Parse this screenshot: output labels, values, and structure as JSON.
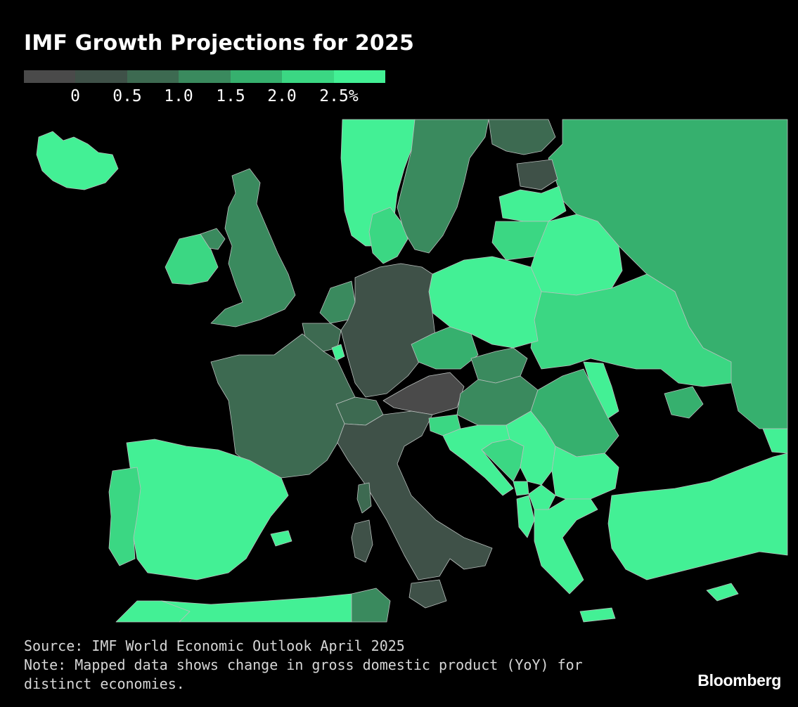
{
  "title": "IMF Growth Projections for 2025",
  "legend": {
    "colors": [
      "#4a4a4a",
      "#3f5148",
      "#3d6a51",
      "#3a8a5e",
      "#36b06e",
      "#3bd783",
      "#43f095"
    ],
    "ticks": [
      "0",
      "0.5",
      "1.0",
      "1.5",
      "2.0",
      "2.5%"
    ]
  },
  "map": {
    "regions": [
      {
        "name": "Iceland",
        "bin": 6
      },
      {
        "name": "Norway",
        "bin": 6
      },
      {
        "name": "Sweden",
        "bin": 3
      },
      {
        "name": "Finland",
        "bin": 2
      },
      {
        "name": "Estonia",
        "bin": 1
      },
      {
        "name": "Latvia",
        "bin": 6
      },
      {
        "name": "Lithuania",
        "bin": 5
      },
      {
        "name": "Russia",
        "bin": 4
      },
      {
        "name": "Ireland",
        "bin": 5
      },
      {
        "name": "Northern Ireland",
        "bin": 3
      },
      {
        "name": "United Kingdom",
        "bin": 3
      },
      {
        "name": "Denmark",
        "bin": 5
      },
      {
        "name": "Netherlands",
        "bin": 3
      },
      {
        "name": "Belgium",
        "bin": 2
      },
      {
        "name": "Luxembourg",
        "bin": 6
      },
      {
        "name": "Germany",
        "bin": 1
      },
      {
        "name": "Poland",
        "bin": 6
      },
      {
        "name": "Belarus",
        "bin": 6
      },
      {
        "name": "Ukraine",
        "bin": 5
      },
      {
        "name": "Czechia",
        "bin": 4
      },
      {
        "name": "Slovakia",
        "bin": 3
      },
      {
        "name": "Austria",
        "bin": 0
      },
      {
        "name": "Switzerland",
        "bin": 2
      },
      {
        "name": "France",
        "bin": 2
      },
      {
        "name": "Italy",
        "bin": 1
      },
      {
        "name": "Hungary",
        "bin": 3
      },
      {
        "name": "Slovenia",
        "bin": 5
      },
      {
        "name": "Croatia",
        "bin": 6
      },
      {
        "name": "Bosnia and Herzegovina",
        "bin": 5
      },
      {
        "name": "Serbia",
        "bin": 6
      },
      {
        "name": "Romania",
        "bin": 4
      },
      {
        "name": "Moldova",
        "bin": 6
      },
      {
        "name": "Bulgaria",
        "bin": 6
      },
      {
        "name": "Greece",
        "bin": 6
      },
      {
        "name": "Turkey",
        "bin": 6
      },
      {
        "name": "Cyprus",
        "bin": 6
      },
      {
        "name": "Spain",
        "bin": 6
      },
      {
        "name": "Portugal",
        "bin": 5
      },
      {
        "name": "Morocco",
        "bin": 6
      },
      {
        "name": "Algeria",
        "bin": 6
      },
      {
        "name": "Tunisia",
        "bin": 3
      },
      {
        "name": "Georgia",
        "bin": 6
      },
      {
        "name": "Crimea",
        "bin": 4
      },
      {
        "name": "Montenegro",
        "bin": 6
      },
      {
        "name": "North Macedonia",
        "bin": 6
      },
      {
        "name": "Albania",
        "bin": 6
      }
    ]
  },
  "footer": {
    "source": "Source: IMF World Economic Outlook April 2025",
    "note_line1": "Note: Mapped data shows change in gross domestic product (YoY) for",
    "note_line2": "distinct economies."
  },
  "brand": "Bloomberg"
}
